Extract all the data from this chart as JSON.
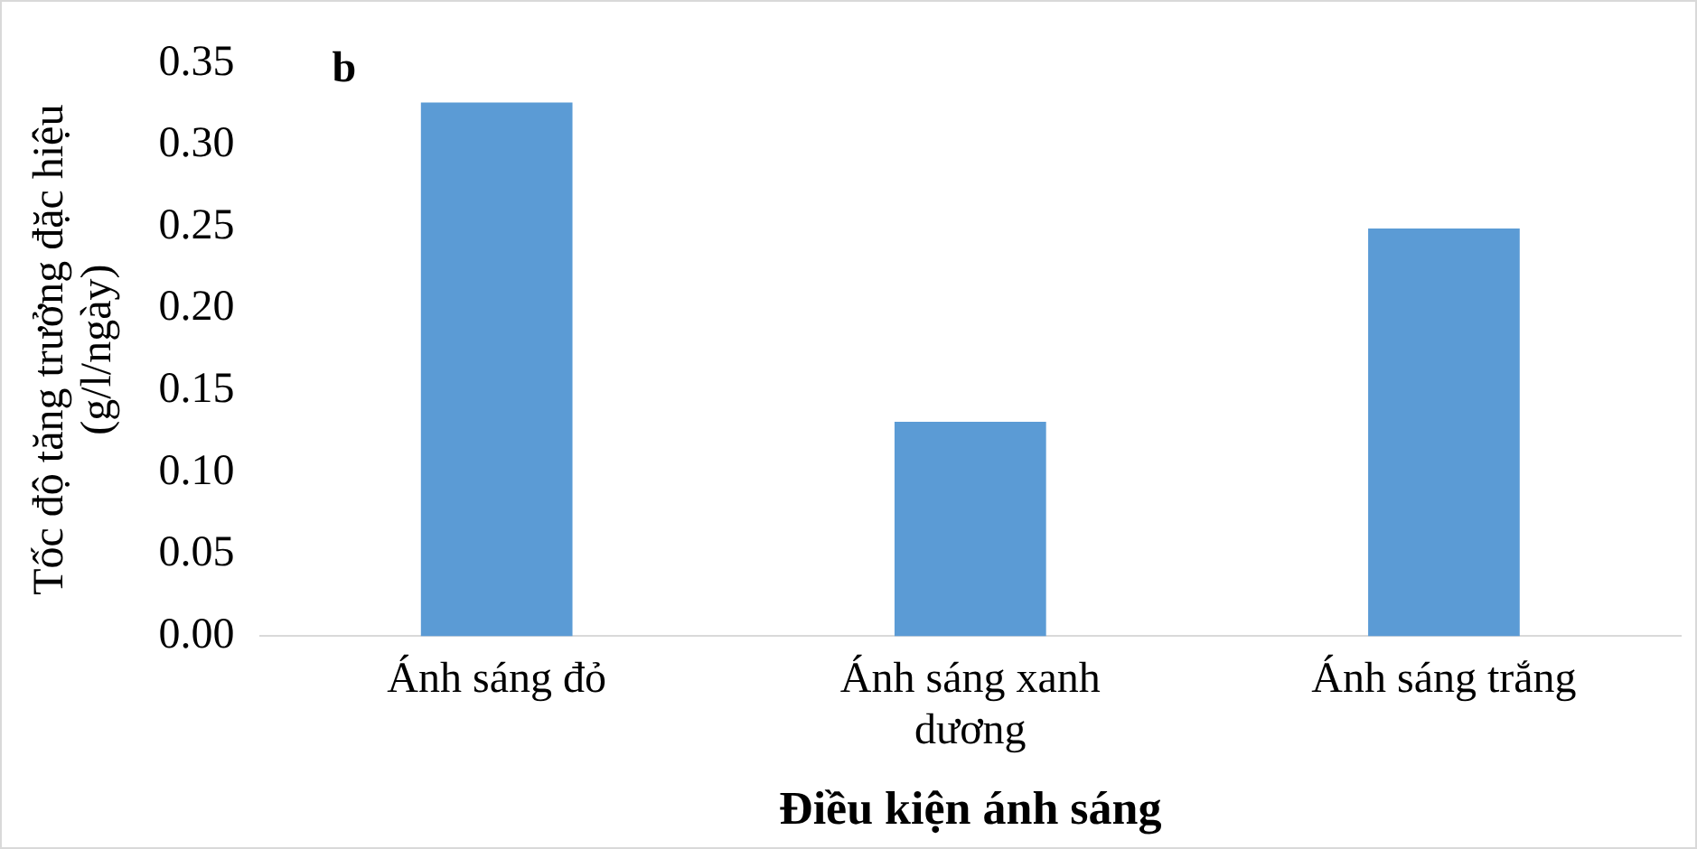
{
  "chart_data": {
    "type": "bar",
    "xlabel": "Điều kiện ánh sáng",
    "ylabel": "Tốc độ tăng trưởng đặc hiệu (g/l/ngày)",
    "categories": [
      "Ánh sáng đỏ",
      "Ánh sáng xanh dương",
      "Ánh sáng trắng"
    ],
    "values": [
      0.326,
      0.131,
      0.249
    ],
    "color": "#5b9bd5",
    "ylim": [
      0,
      0.35
    ],
    "yticks": [
      {
        "value": 0,
        "label": "0.00"
      },
      0.05,
      {
        "value": 0.1,
        "label": "0.10"
      },
      0.15,
      {
        "value": 0.2,
        "label": "0.20"
      },
      0.25,
      {
        "value": 0.3,
        "label": "0.30"
      },
      0.35
    ],
    "grid": false,
    "legend": false,
    "annotations": [
      "b"
    ]
  }
}
